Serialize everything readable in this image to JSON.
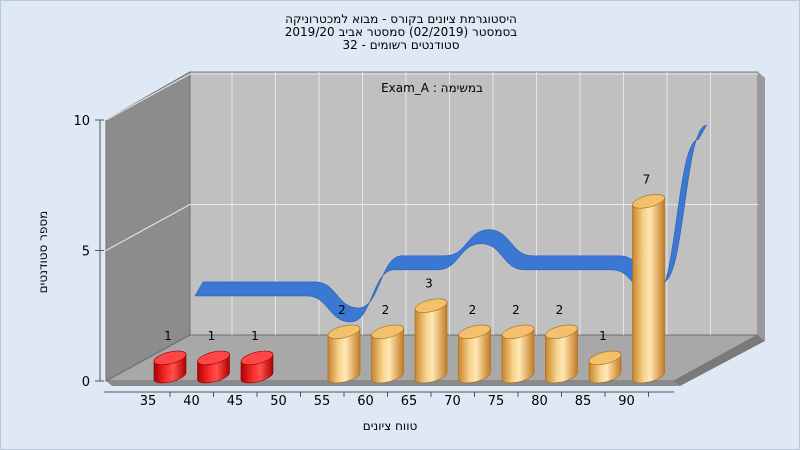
{
  "chart_data": {
    "type": "bar",
    "title_lines": [
      "היסטוגרמת ציונים בקורס - מבוא למכטרוניקה",
      "בסמסטר  (02/2019)  סמסטר אביב 2019/20",
      "סטודנטים רשומים - 32"
    ],
    "annotation": "Exam_A : במשימה",
    "xlabel": "טווח ציונים",
    "ylabel": "מספר סטודנטים",
    "categories": [
      "35",
      "40",
      "45",
      "50",
      "55",
      "60",
      "65",
      "70",
      "75",
      "80",
      "85",
      "90"
    ],
    "series": [
      {
        "values": [
          1,
          1,
          1,
          null,
          2,
          2,
          3,
          2,
          2,
          2,
          1,
          7
        ]
      }
    ],
    "data_labels": [
      "1",
      "1",
      "1",
      "",
      "2",
      "2",
      "3",
      "2",
      "2",
      "2",
      "1",
      "7"
    ],
    "y_ticks": [
      "0",
      "5",
      "10"
    ],
    "ylim": [
      0,
      10
    ],
    "grid": true,
    "colors": {
      "fail": "#e01515",
      "pass": "#e3a443",
      "curve": "#3a78d4",
      "wall_back": "#c0c0c0",
      "wall_side": "#8c8c8c",
      "floor": "#a8a8a8",
      "background": "#dfe9f5"
    }
  }
}
